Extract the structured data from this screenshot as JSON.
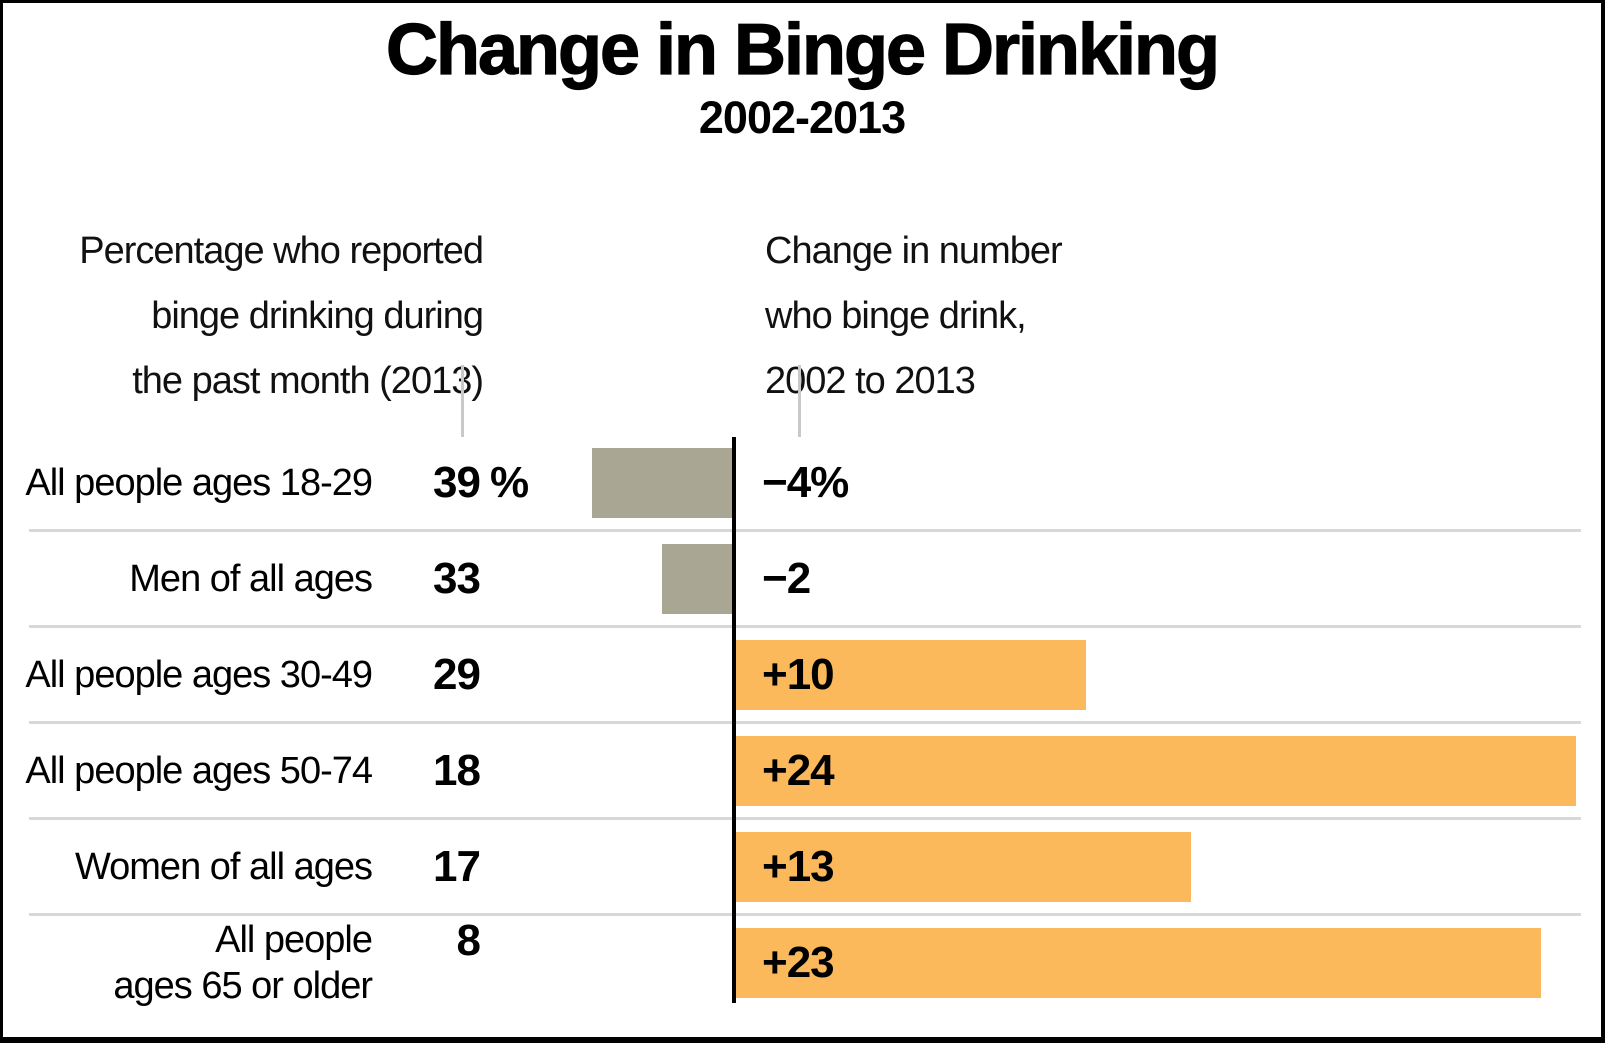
{
  "chart_data": {
    "type": "bar",
    "orientation": "horizontal",
    "title": "Change in Binge Drinking",
    "subtitle": "2002-2013",
    "categories": [
      "All people ages 18-29",
      "Men of all ages",
      "All people ages 30-49",
      "All people ages 50-74",
      "Women of all ages",
      "All people\nages 65 or older"
    ],
    "series": [
      {
        "name": "Percentage who reported\nbinge drinking during\nthe past month (2013)",
        "role": "text-column",
        "values": [
          39,
          33,
          29,
          18,
          17,
          8
        ],
        "display": [
          "39%",
          "33",
          "29",
          "18",
          "17",
          "8"
        ]
      },
      {
        "name": "Change in number\nwho binge drink,\n2002 to 2013",
        "role": "bars",
        "values": [
          -4,
          -2,
          10,
          24,
          13,
          23
        ],
        "display": [
          "−4%",
          "−2",
          "+10",
          "+24",
          "+13",
          "+23"
        ]
      }
    ],
    "colors": {
      "negative_bar": "#A9A694",
      "positive_bar": "#FBB95C",
      "axis": "#000000",
      "row_separator": "#D8D8D8",
      "header_tick": "#C9C9C9"
    },
    "zero_baseline": true,
    "grid": "row-separators",
    "legend_position": "column-headers"
  }
}
